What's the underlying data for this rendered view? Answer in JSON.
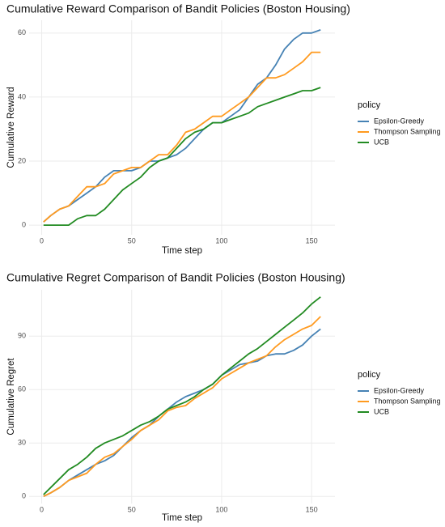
{
  "chart_data": [
    {
      "type": "line",
      "title": "Cumulative Reward Comparison of Bandit Policies (Boston Housing)",
      "x_label": "Time step",
      "y_label": "Cumulative Reward",
      "legend_title": "policy",
      "legend": "right",
      "grid": true,
      "x": [
        1,
        5,
        10,
        15,
        20,
        25,
        30,
        35,
        40,
        45,
        50,
        55,
        60,
        65,
        70,
        75,
        80,
        85,
        90,
        95,
        100,
        105,
        110,
        115,
        120,
        125,
        130,
        135,
        140,
        145,
        150,
        155
      ],
      "xlim": [
        -7,
        163
      ],
      "xticks": [
        0,
        50,
        100,
        150
      ],
      "ylim": [
        -3,
        64
      ],
      "yticks": [
        0,
        20,
        40,
        60
      ],
      "series": [
        {
          "name": "Epsilon-Greedy",
          "color": "#4682b4",
          "values": [
            1,
            3,
            5,
            6,
            8,
            10,
            12,
            15,
            17,
            17,
            17,
            18,
            20,
            20,
            21,
            22,
            24,
            27,
            30,
            32,
            32,
            34,
            36,
            40,
            44,
            46,
            50,
            55,
            58,
            60,
            60,
            61
          ]
        },
        {
          "name": "Thompson Sampling",
          "color": "#ff9a1f",
          "values": [
            1,
            3,
            5,
            6,
            9,
            12,
            12,
            13,
            16,
            17,
            18,
            18,
            20,
            22,
            22,
            25,
            29,
            30,
            32,
            34,
            34,
            36,
            38,
            40,
            43,
            46,
            46,
            47,
            49,
            51,
            54,
            54
          ]
        },
        {
          "name": "UCB",
          "color": "#228b22",
          "values": [
            0,
            0,
            0,
            0,
            2,
            3,
            3,
            5,
            8,
            11,
            13,
            15,
            18,
            20,
            21,
            24,
            27,
            29,
            30,
            32,
            32,
            33,
            34,
            35,
            37,
            38,
            39,
            40,
            41,
            42,
            42,
            43
          ]
        }
      ]
    },
    {
      "type": "line",
      "title": "Cumulative Regret Comparison of Bandit Policies (Boston Housing)",
      "x_label": "Time step",
      "y_label": "Cumulative Regret",
      "legend_title": "policy",
      "legend": "right",
      "grid": true,
      "x": [
        1,
        5,
        10,
        15,
        20,
        25,
        30,
        35,
        40,
        45,
        50,
        55,
        60,
        65,
        70,
        75,
        80,
        85,
        90,
        95,
        100,
        105,
        110,
        115,
        120,
        125,
        130,
        135,
        140,
        145,
        150,
        155
      ],
      "xlim": [
        -7,
        163
      ],
      "xticks": [
        0,
        50,
        100,
        150
      ],
      "ylim": [
        -4,
        116
      ],
      "yticks": [
        0,
        30,
        60,
        90
      ],
      "series": [
        {
          "name": "Epsilon-Greedy",
          "color": "#4682b4",
          "values": [
            0,
            2,
            5,
            9,
            12,
            15,
            18,
            20,
            23,
            28,
            33,
            37,
            40,
            45,
            49,
            53,
            56,
            58,
            60,
            63,
            68,
            71,
            74,
            75,
            76,
            79,
            80,
            80,
            82,
            85,
            90,
            94
          ]
        },
        {
          "name": "Thompson Sampling",
          "color": "#ff9a1f",
          "values": [
            0,
            2,
            5,
            9,
            11,
            13,
            18,
            22,
            24,
            28,
            32,
            37,
            40,
            43,
            48,
            50,
            51,
            55,
            58,
            61,
            66,
            69,
            72,
            75,
            77,
            79,
            84,
            88,
            91,
            94,
            96,
            101
          ]
        },
        {
          "name": "UCB",
          "color": "#228b22",
          "values": [
            1,
            5,
            10,
            15,
            18,
            22,
            27,
            30,
            32,
            34,
            37,
            40,
            42,
            45,
            49,
            51,
            53,
            56,
            60,
            63,
            68,
            72,
            76,
            80,
            83,
            87,
            91,
            95,
            99,
            103,
            108,
            112
          ]
        }
      ]
    }
  ]
}
